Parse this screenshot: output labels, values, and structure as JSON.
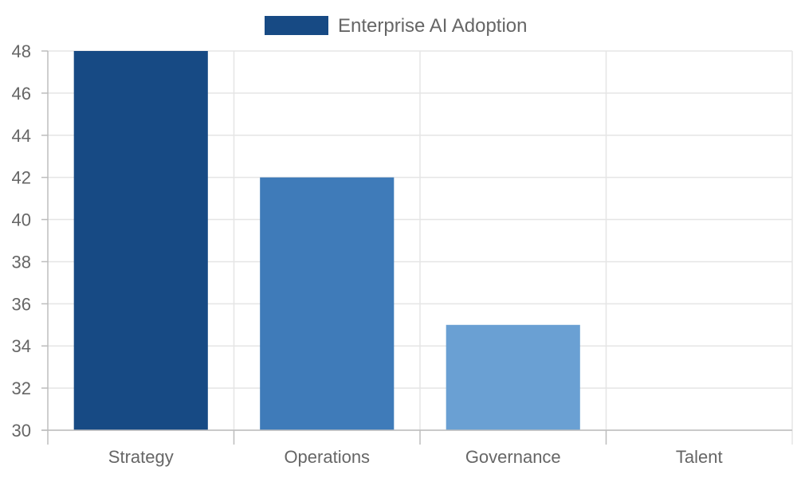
{
  "chart_data": {
    "type": "bar",
    "title": "",
    "xlabel": "",
    "ylabel": "",
    "categories": [
      "Strategy",
      "Operations",
      "Governance",
      "Talent"
    ],
    "series": [
      {
        "name": "Enterprise AI Adoption",
        "values": [
          48,
          42,
          35,
          30
        ],
        "colors": [
          "#174a84",
          "#3f7bb9",
          "#6aa0d3",
          "#9cc2e7"
        ]
      }
    ],
    "ylim": [
      30,
      48
    ],
    "yticks": [
      30,
      32,
      34,
      36,
      38,
      40,
      42,
      44,
      46,
      48
    ],
    "grid": true,
    "legend": {
      "position": "top",
      "label": "Enterprise AI Adoption",
      "swatch_color": "#174a84"
    },
    "colors": {
      "grid": "#e5e5e5",
      "axis": "#bdbdbd",
      "text": "#666666"
    }
  }
}
